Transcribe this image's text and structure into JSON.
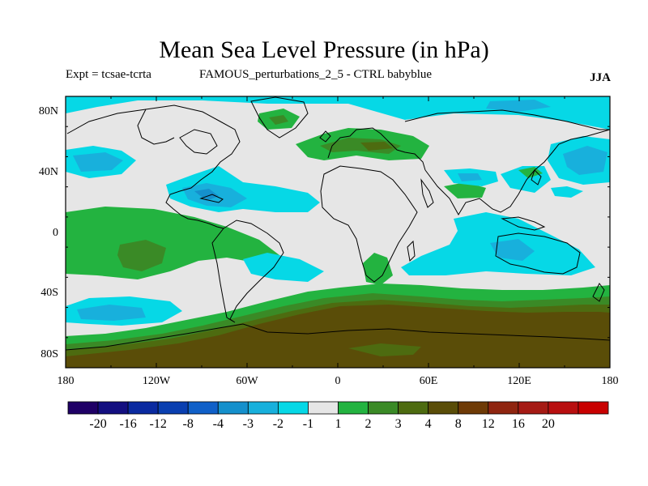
{
  "title": "Mean Sea Level Pressure (in hPa)",
  "expt_label": "Expt = tcsae-tcrta",
  "run_label": "FAMOUS_perturbations_2_5 - CTRL babyblue",
  "season": "JJA",
  "lat_ticks": [
    "80N",
    "40N",
    "0",
    "40S",
    "80S"
  ],
  "lon_ticks": [
    "180",
    "120W",
    "60W",
    "0",
    "60E",
    "120E",
    "180"
  ],
  "colorbar": {
    "colors": [
      "#1f0066",
      "#130f80",
      "#0a2aa0",
      "#0a3fb0",
      "#1060c8",
      "#1590cc",
      "#18b0dc",
      "#06d8e6",
      "#e6e6e6",
      "#23b340",
      "#3a8a26",
      "#4d6b10",
      "#5a4d08",
      "#6e3a06",
      "#8f2510",
      "#a51a14",
      "#b80f10",
      "#c80000"
    ],
    "labels": [
      "-20",
      "-16",
      "-12",
      "-8",
      "-4",
      "-3",
      "-2",
      "-1",
      "1",
      "2",
      "3",
      "4",
      "8",
      "12",
      "16",
      "20"
    ]
  }
}
